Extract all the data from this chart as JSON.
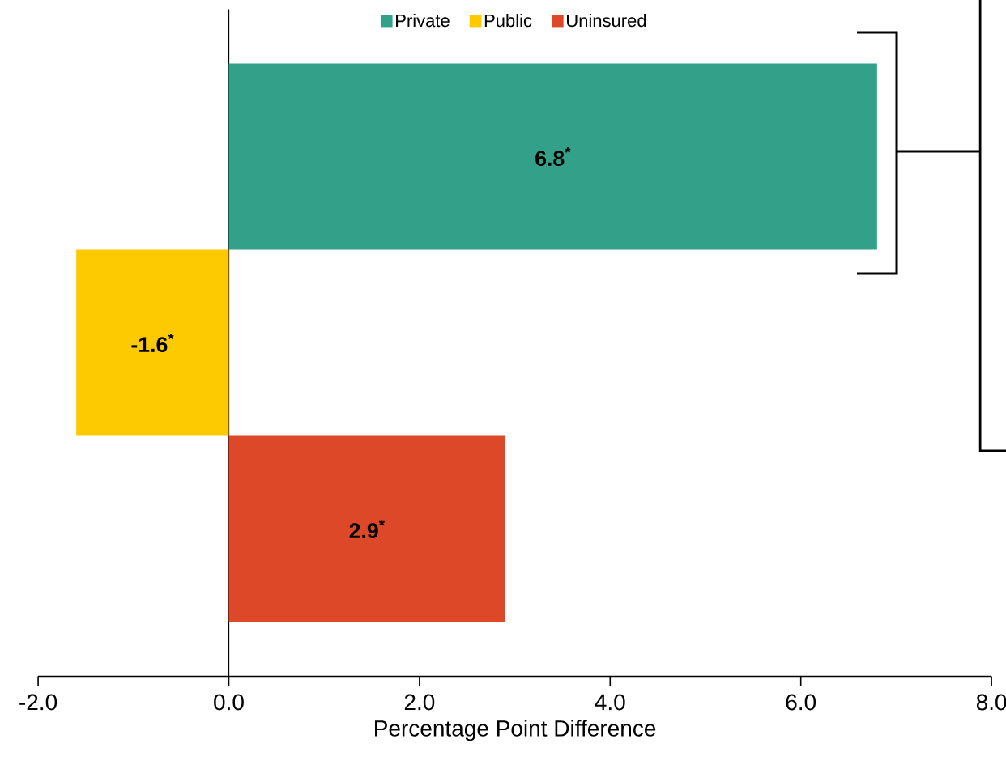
{
  "chart_data": {
    "type": "bar",
    "orientation": "horizontal",
    "categories": [
      null,
      null,
      null
    ],
    "series": [
      {
        "name": "Private",
        "color": "#33a18a",
        "values": [
          6.8,
          null,
          null
        ],
        "value_labels": [
          "6.8$^{*}$",
          null,
          null
        ]
      },
      {
        "name": "Public",
        "color": "#fdc900",
        "values": [
          null,
          -1.6,
          null
        ],
        "value_labels": [
          null,
          "-1.6$^{*}$",
          null
        ]
      },
      {
        "name": "Uninsured",
        "color": "#dc4828",
        "values": [
          null,
          null,
          2.9
        ],
        "value_labels": [
          null,
          null,
          "2.9$^{*}$"
        ]
      }
    ],
    "xlim": [
      -2,
      8
    ],
    "xticks": [
      {
        "value": -2,
        "label": "-2.0"
      },
      {
        "value": 0,
        "label": "0.0"
      },
      {
        "value": 2,
        "label": "2.0"
      },
      {
        "value": 4,
        "label": "4.0"
      },
      {
        "value": 6,
        "label": "6.0"
      },
      {
        "value": 8,
        "label": "8.0"
      }
    ],
    "xlabel": "Percentage Point Difference",
    "legend": "top",
    "tick_labels": "x"
  }
}
